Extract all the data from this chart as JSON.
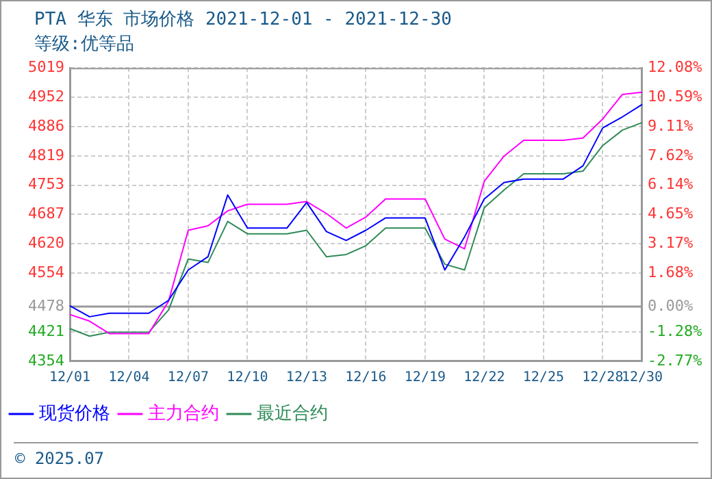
{
  "chart_data": {
    "type": "line",
    "title": "PTA 华东 市场价格 2021-12-01 - 2021-12-30",
    "subtitle": "等级:优等品",
    "categories": [
      "12/01",
      null,
      null,
      "12/04",
      null,
      null,
      "12/07",
      null,
      null,
      "12/10",
      null,
      null,
      "12/13",
      null,
      null,
      "12/16",
      null,
      null,
      "12/19",
      null,
      null,
      "12/22",
      null,
      null,
      "12/25",
      null,
      null,
      "12/28",
      null,
      "12/30"
    ],
    "series": [
      {
        "name": "现货价格",
        "color": "#0000ff",
        "values": [
          4480,
          4455,
          4463,
          4463,
          4463,
          4492,
          4561,
          4591,
          4731,
          4656,
          4656,
          4656,
          4714,
          4648,
          4628,
          4651,
          4679,
          4679,
          4679,
          4561,
          4636,
          4722,
          4759,
          4767,
          4767,
          4767,
          4797,
          4883,
          4908,
          4936
        ]
      },
      {
        "name": "主力合约",
        "color": "#ff00ff",
        "values": [
          4460,
          4445,
          4417,
          4417,
          4417,
          4490,
          4651,
          4661,
          4695,
          4710,
          4710,
          4710,
          4716,
          4689,
          4656,
          4681,
          4722,
          4722,
          4722,
          4631,
          4609,
          4762,
          4819,
          4855,
          4855,
          4855,
          4860,
          4903,
          4959,
          4964
        ]
      },
      {
        "name": "最近合约",
        "color": "#2e8b57",
        "values": [
          4428,
          4411,
          4420,
          4420,
          4420,
          4470,
          4586,
          4578,
          4671,
          4643,
          4643,
          4643,
          4651,
          4591,
          4596,
          4616,
          4656,
          4656,
          4656,
          4574,
          4561,
          4702,
          4742,
          4779,
          4779,
          4779,
          4785,
          4843,
          4878,
          4895
        ]
      }
    ],
    "ylim": [
      4354,
      5019
    ],
    "yticks": [
      4354,
      4421,
      4478,
      4554,
      4620,
      4687,
      4753,
      4819,
      4886,
      4952,
      5019
    ],
    "y2lim": [
      -2.77,
      12.08
    ],
    "y2ticks": [
      {
        "value": -2.77,
        "label": "-2.77%"
      },
      {
        "value": -1.28,
        "label": "-1.28%"
      },
      {
        "value": 0,
        "label": "0.00%"
      },
      {
        "value": 1.68,
        "label": "1.68%"
      },
      {
        "value": 3.17,
        "label": "3.17%"
      },
      {
        "value": 4.65,
        "label": "4.65%"
      },
      {
        "value": 6.14,
        "label": "6.14%"
      },
      {
        "value": 7.62,
        "label": "7.62%"
      },
      {
        "value": 9.11,
        "label": "9.11%"
      },
      {
        "value": 10.59,
        "label": "10.59%"
      },
      {
        "value": 12.08,
        "label": "12.08%"
      }
    ],
    "ref_lines": [
      {
        "axis": "y",
        "value": 4478,
        "color": "#999999"
      }
    ],
    "grid": true,
    "legend": "bottom",
    "marker": "none",
    "line_style": "solid",
    "annotations": [
      "© 2025.07"
    ]
  }
}
